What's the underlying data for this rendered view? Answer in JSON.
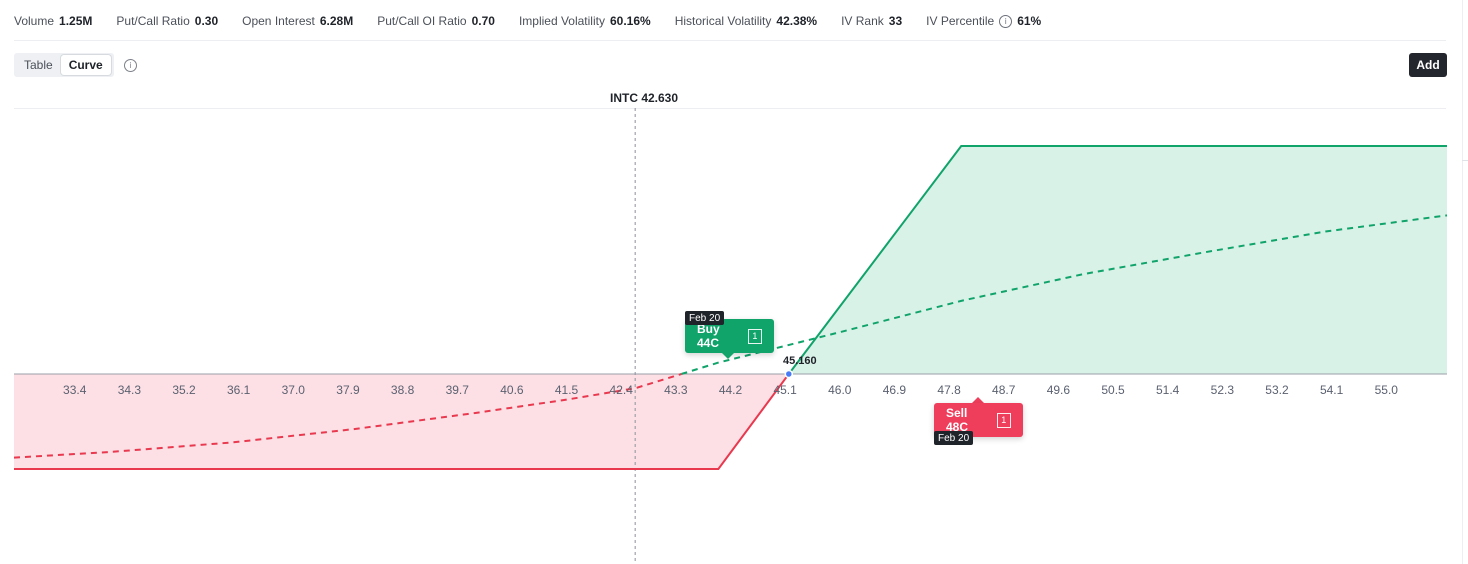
{
  "stats": [
    {
      "label": "Volume",
      "value": "1.25M"
    },
    {
      "label": "Put/Call Ratio",
      "value": "0.30"
    },
    {
      "label": "Open Interest",
      "value": "6.28M"
    },
    {
      "label": "Put/Call OI Ratio",
      "value": "0.70"
    },
    {
      "label": "Implied Volatility",
      "value": "60.16%"
    },
    {
      "label": "Historical Volatility",
      "value": "42.38%"
    },
    {
      "label": "IV Rank",
      "value": "33"
    },
    {
      "label": "IV Percentile",
      "value": "61%",
      "has_info_icon": true
    }
  ],
  "view_toggle": {
    "options": [
      "Table",
      "Curve"
    ],
    "selected": "Curve"
  },
  "add_button": "Add",
  "underlying": {
    "label": "INTC 42.630",
    "price": 42.63
  },
  "breakeven": {
    "label": "45.160",
    "value": 45.16
  },
  "legs": [
    {
      "action_label": "Buy 44C",
      "quantity": "1",
      "expiry": "Feb 20"
    },
    {
      "action_label": "Sell 48C",
      "quantity": "1",
      "expiry": "Feb 20"
    }
  ],
  "chart_data": {
    "type": "line",
    "x_ticks": [
      "33.4",
      "34.3",
      "35.2",
      "36.1",
      "37.0",
      "37.9",
      "38.8",
      "39.7",
      "40.6",
      "41.5",
      "42.4",
      "43.3",
      "44.2",
      "45.1",
      "46.0",
      "46.9",
      "47.8",
      "48.7",
      "49.6",
      "50.5",
      "51.4",
      "52.3",
      "53.2",
      "54.1",
      "55.0"
    ],
    "xlim": [
      32.4,
      56.0
    ],
    "series": [
      {
        "style": "solid",
        "points": [
          [
            32.4,
            -1.0
          ],
          [
            44.0,
            -1.0
          ],
          [
            48.0,
            2.4
          ],
          [
            56.0,
            2.4
          ]
        ]
      },
      {
        "style": "dashed",
        "points": [
          [
            32.4,
            -0.88
          ],
          [
            34.0,
            -0.82
          ],
          [
            36.0,
            -0.72
          ],
          [
            38.0,
            -0.58
          ],
          [
            40.0,
            -0.41
          ],
          [
            41.5,
            -0.27
          ],
          [
            42.63,
            -0.15
          ],
          [
            44.0,
            0.12
          ],
          [
            46.0,
            0.44
          ],
          [
            48.0,
            0.77
          ],
          [
            50.0,
            1.05
          ],
          [
            52.0,
            1.28
          ],
          [
            54.0,
            1.5
          ],
          [
            56.0,
            1.67
          ]
        ]
      }
    ],
    "colors": {
      "profit": "#10a36a",
      "loss": "#e8394f",
      "profit_fill": "#d9f2e8",
      "loss_fill": "#fde0e5",
      "axis_text": "#5b6170"
    }
  }
}
